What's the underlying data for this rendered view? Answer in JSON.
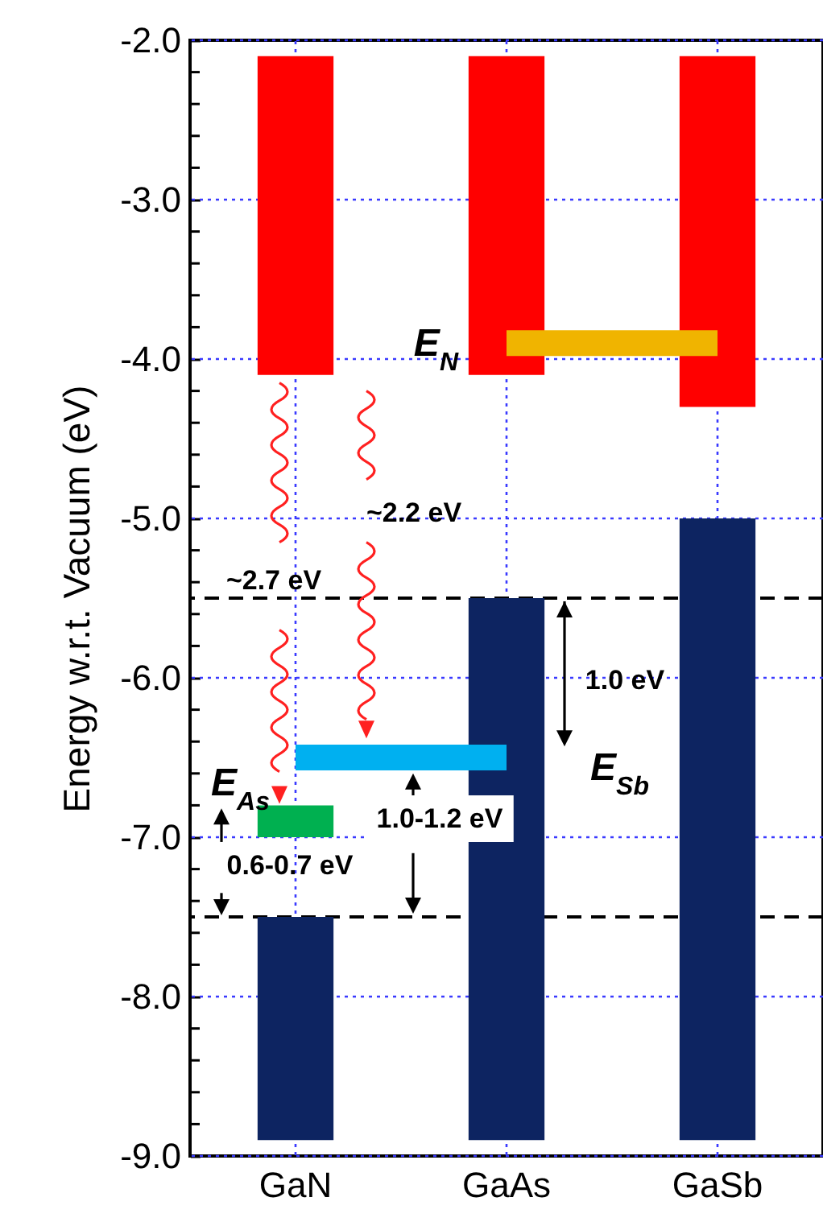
{
  "chart_data": {
    "type": "bar",
    "ylabel": "Energy w.r.t. Vacuum (eV)",
    "categories": [
      "GaN",
      "GaAs",
      "GaSb"
    ],
    "series": [
      {
        "color": "#ff0000",
        "base": [
          -4.1,
          -4.1,
          -4.3
        ],
        "values": [
          2.0,
          2.0,
          2.2
        ]
      },
      {
        "color": "#0d2461",
        "base": [
          -8.9,
          -8.9,
          -8.9
        ],
        "values": [
          1.4,
          3.4,
          3.9
        ]
      },
      {
        "name": "E$_{As}$",
        "color": "#00b050",
        "base": [
          -7.0,
          null,
          null
        ],
        "values": [
          0.2,
          null,
          null
        ]
      },
      {
        "name": "E$_{Sb}$",
        "type": "line",
        "color": "#00b0f0",
        "values": [
          -6.5,
          -6.5,
          null
        ]
      },
      {
        "name": "E$_{N}$",
        "type": "line",
        "color": "#f0b400",
        "values": [
          null,
          -3.9,
          -3.9
        ]
      }
    ],
    "ylim": [
      -9.0,
      -2.0
    ],
    "yticks": [
      {
        "value": -2,
        "label": "-2.0"
      },
      {
        "value": -3,
        "label": "-3.0"
      },
      {
        "value": -4,
        "label": "-4.0"
      },
      {
        "value": -5,
        "label": "-5.0"
      },
      {
        "value": -6,
        "label": "-6.0"
      },
      {
        "value": -7,
        "label": "-7.0"
      },
      {
        "value": -8,
        "label": "-8.0"
      },
      {
        "value": -9,
        "label": "-9.0"
      },
      {
        "value": -2.2,
        "label": null
      },
      {
        "value": -2.4,
        "label": null
      },
      {
        "value": -2.6,
        "label": null
      },
      {
        "value": -2.8,
        "label": null
      },
      {
        "value": -3.2,
        "label": null
      },
      {
        "value": -3.4,
        "label": null
      },
      {
        "value": -3.6,
        "label": null
      },
      {
        "value": -3.8,
        "label": null
      },
      {
        "value": -4.2,
        "label": null
      },
      {
        "value": -4.4,
        "label": null
      },
      {
        "value": -4.6,
        "label": null
      },
      {
        "value": -4.8,
        "label": null
      },
      {
        "value": -5.2,
        "label": null
      },
      {
        "value": -5.4,
        "label": null
      },
      {
        "value": -5.6,
        "label": null
      },
      {
        "value": -5.8,
        "label": null
      },
      {
        "value": -6.2,
        "label": null
      },
      {
        "value": -6.4,
        "label": null
      },
      {
        "value": -6.6,
        "label": null
      },
      {
        "value": -6.8,
        "label": null
      },
      {
        "value": -7.2,
        "label": null
      },
      {
        "value": -7.4,
        "label": null
      },
      {
        "value": -7.6,
        "label": null
      },
      {
        "value": -7.8,
        "label": null
      },
      {
        "value": -8.2,
        "label": null
      },
      {
        "value": -8.4,
        "label": null
      },
      {
        "value": -8.6,
        "label": null
      },
      {
        "value": -8.8,
        "label": null
      }
    ],
    "ref_lines": [
      {
        "axis": "y",
        "value": -5.5,
        "color": "#000000",
        "line_style": "dashed"
      },
      {
        "axis": "y",
        "value": -7.5,
        "color": "#000000",
        "line_style": "dashed"
      }
    ],
    "annotations": [
      "~2.7 eV",
      "~2.2 eV",
      "1.0 eV",
      "1.0-1.2 eV",
      "0.6-0.7 eV"
    ],
    "grid": true
  }
}
